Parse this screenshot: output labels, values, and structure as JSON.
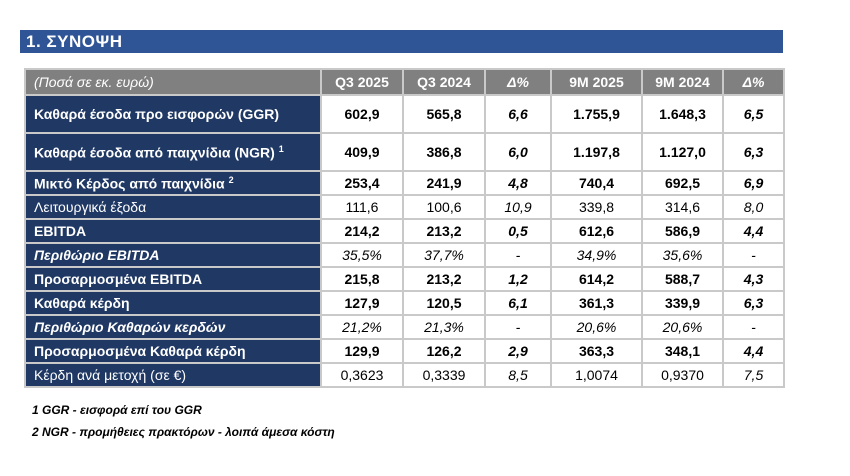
{
  "section_title": "1.  ΣΥΝΟΨΗ",
  "table": {
    "header": {
      "unit": "(Ποσά σε εκ. ευρώ)",
      "cols": [
        "Q3 2025",
        "Q3 2024",
        "Δ%",
        "9M 2025",
        "9M 2024",
        "Δ%"
      ]
    },
    "rows": [
      {
        "label": "Καθαρά έσοδα προ εισφορών (GGR)",
        "sup": "",
        "vals": [
          "602,9",
          "565,8",
          "6,6",
          "1.755,9",
          "1.648,3",
          "6,5"
        ]
      },
      {
        "label": "Καθαρά έσοδα από παιχνίδια (NGR)",
        "sup": "1",
        "vals": [
          "409,9",
          "386,8",
          "6,0",
          "1.197,8",
          "1.127,0",
          "6,3"
        ]
      },
      {
        "label": "Μικτό Κέρδος από παιχνίδια",
        "sup": "2",
        "vals": [
          "253,4",
          "241,9",
          "4,8",
          "740,4",
          "692,5",
          "6,9"
        ]
      },
      {
        "label": "Λειτουργικά έξοδα",
        "sup": "",
        "vals": [
          "111,6",
          "100,6",
          "10,9",
          "339,8",
          "314,6",
          "8,0"
        ]
      },
      {
        "label": "EBITDA",
        "sup": "",
        "vals": [
          "214,2",
          "213,2",
          "0,5",
          "612,6",
          "586,9",
          "4,4"
        ]
      },
      {
        "label": "Περιθώριο EBITDA",
        "sup": "",
        "vals": [
          "35,5%",
          "37,7%",
          "-",
          "34,9%",
          "35,6%",
          "-"
        ]
      },
      {
        "label": "Προσαρμοσμένα EBITDA",
        "sup": "",
        "vals": [
          "215,8",
          "213,2",
          "1,2",
          "614,2",
          "588,7",
          "4,3"
        ]
      },
      {
        "label": "Καθαρά κέρδη",
        "sup": "",
        "vals": [
          "127,9",
          "120,5",
          "6,1",
          "361,3",
          "339,9",
          "6,3"
        ]
      },
      {
        "label": "Περιθώριο Καθαρών κερδών",
        "sup": "",
        "vals": [
          "21,2%",
          "21,3%",
          "-",
          "20,6%",
          "20,6%",
          "-"
        ]
      },
      {
        "label": "Προσαρμοσμένα Καθαρά κέρδη",
        "sup": "",
        "vals": [
          "129,9",
          "126,2",
          "2,9",
          "363,3",
          "348,1",
          "4,4"
        ]
      },
      {
        "label": "Κέρδη ανά μετοχή (σε €)",
        "sup": "",
        "vals": [
          "0,3623",
          "0,3339",
          "8,5",
          "1,0074",
          "0,9370",
          "7,5"
        ]
      }
    ]
  },
  "footnotes": [
    "1 GGR - εισφορά επί του GGR",
    "2 NGR - προμήθειες πρακτόρων - λοιπά άμεσα κόστη"
  ]
}
